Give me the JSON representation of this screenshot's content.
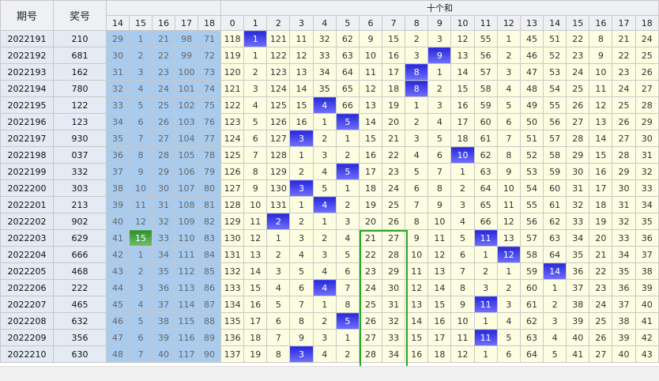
{
  "header": {
    "issue": "期号",
    "number": "奖号",
    "group": "十个和",
    "left_cols": [
      14,
      15,
      16,
      17,
      18
    ],
    "right_cols": [
      0,
      1,
      2,
      3,
      4,
      5,
      6,
      7,
      8,
      9,
      10,
      11,
      12,
      13,
      14,
      15,
      16,
      17,
      18
    ]
  },
  "rows": [
    {
      "issue": "2022191",
      "number": "210",
      "left": [
        29,
        1,
        21,
        98,
        71
      ],
      "right": [
        118,
        1,
        121,
        11,
        32,
        62,
        9,
        15,
        2,
        3,
        12,
        55,
        1,
        45,
        51,
        22,
        8,
        21,
        24
      ],
      "hit": 1
    },
    {
      "issue": "2022192",
      "number": "681",
      "left": [
        30,
        2,
        22,
        99,
        72
      ],
      "right": [
        119,
        1,
        122,
        12,
        33,
        63,
        10,
        16,
        3,
        9,
        13,
        56,
        2,
        46,
        52,
        23,
        9,
        22,
        25
      ],
      "hit": 9
    },
    {
      "issue": "2022193",
      "number": "162",
      "left": [
        31,
        3,
        23,
        100,
        73
      ],
      "right": [
        120,
        2,
        123,
        13,
        34,
        64,
        11,
        17,
        8,
        1,
        14,
        57,
        3,
        47,
        53,
        24,
        10,
        23,
        26
      ],
      "hit": 8
    },
    {
      "issue": "2022194",
      "number": "780",
      "left": [
        32,
        4,
        24,
        101,
        74
      ],
      "right": [
        121,
        3,
        124,
        14,
        35,
        65,
        12,
        18,
        8,
        2,
        15,
        58,
        4,
        48,
        54,
        25,
        11,
        24,
        27
      ],
      "hit": 8
    },
    {
      "issue": "2022195",
      "number": "122",
      "left": [
        33,
        5,
        25,
        102,
        75
      ],
      "right": [
        122,
        4,
        125,
        15,
        4,
        66,
        13,
        19,
        1,
        3,
        16,
        59,
        5,
        49,
        55,
        26,
        12,
        25,
        28
      ],
      "hit": 4
    },
    {
      "issue": "2022196",
      "number": "123",
      "left": [
        34,
        6,
        26,
        103,
        76
      ],
      "right": [
        123,
        5,
        126,
        16,
        1,
        5,
        14,
        20,
        2,
        4,
        17,
        60,
        6,
        50,
        56,
        27,
        13,
        26,
        29
      ],
      "hit": 5
    },
    {
      "issue": "2022197",
      "number": "930",
      "left": [
        35,
        7,
        27,
        104,
        77
      ],
      "right": [
        124,
        6,
        127,
        3,
        2,
        1,
        15,
        21,
        3,
        5,
        18,
        61,
        7,
        51,
        57,
        28,
        14,
        27,
        30
      ],
      "hit": 3
    },
    {
      "issue": "2022198",
      "number": "037",
      "left": [
        36,
        8,
        28,
        105,
        78
      ],
      "right": [
        125,
        7,
        128,
        1,
        3,
        2,
        16,
        22,
        4,
        6,
        10,
        62,
        8,
        52,
        58,
        29,
        15,
        28,
        31
      ],
      "hit": 10
    },
    {
      "issue": "2022199",
      "number": "332",
      "left": [
        37,
        9,
        29,
        106,
        79
      ],
      "right": [
        126,
        8,
        129,
        2,
        4,
        5,
        17,
        23,
        5,
        7,
        1,
        63,
        9,
        53,
        59,
        30,
        16,
        29,
        32
      ],
      "hit": 5
    },
    {
      "issue": "2022200",
      "number": "303",
      "left": [
        38,
        10,
        30,
        107,
        80
      ],
      "right": [
        127,
        9,
        130,
        3,
        5,
        1,
        18,
        24,
        6,
        8,
        2,
        64,
        10,
        54,
        60,
        31,
        17,
        30,
        33
      ],
      "hit": 3
    },
    {
      "issue": "2022201",
      "number": "213",
      "left": [
        39,
        11,
        31,
        108,
        81
      ],
      "right": [
        128,
        10,
        131,
        1,
        4,
        2,
        19,
        25,
        7,
        9,
        3,
        65,
        11,
        55,
        61,
        32,
        18,
        31,
        34
      ],
      "hit": 4
    },
    {
      "issue": "2022202",
      "number": "902",
      "left": [
        40,
        12,
        32,
        109,
        82
      ],
      "right": [
        129,
        11,
        2,
        2,
        1,
        3,
        20,
        26,
        8,
        10,
        4,
        66,
        12,
        56,
        62,
        33,
        19,
        32,
        35
      ],
      "hit": 2
    },
    {
      "issue": "2022203",
      "number": "629",
      "left": [
        41,
        15,
        33,
        110,
        83
      ],
      "right": [
        130,
        12,
        1,
        3,
        2,
        4,
        21,
        27,
        9,
        11,
        5,
        11,
        13,
        57,
        63,
        34,
        20,
        33,
        36
      ],
      "hit": 11,
      "left_hit": 1
    },
    {
      "issue": "2022204",
      "number": "666",
      "left": [
        42,
        1,
        34,
        111,
        84
      ],
      "right": [
        131,
        13,
        2,
        4,
        3,
        5,
        22,
        28,
        10,
        12,
        6,
        1,
        12,
        58,
        64,
        35,
        21,
        34,
        37
      ],
      "hit": 12
    },
    {
      "issue": "2022205",
      "number": "468",
      "left": [
        43,
        2,
        35,
        112,
        85
      ],
      "right": [
        132,
        14,
        3,
        5,
        4,
        6,
        23,
        29,
        11,
        13,
        7,
        2,
        1,
        59,
        14,
        36,
        22,
        35,
        38
      ],
      "hit": 14
    },
    {
      "issue": "2022206",
      "number": "222",
      "left": [
        44,
        3,
        36,
        113,
        86
      ],
      "right": [
        133,
        15,
        4,
        6,
        4,
        7,
        24,
        30,
        12,
        14,
        8,
        3,
        2,
        60,
        1,
        37,
        23,
        36,
        39
      ],
      "hit": 4
    },
    {
      "issue": "2022207",
      "number": "465",
      "left": [
        45,
        4,
        37,
        114,
        87
      ],
      "right": [
        134,
        16,
        5,
        7,
        1,
        8,
        25,
        31,
        13,
        15,
        9,
        11,
        3,
        61,
        2,
        38,
        24,
        37,
        40
      ],
      "hit": 11
    },
    {
      "issue": "2022208",
      "number": "632",
      "left": [
        46,
        5,
        38,
        115,
        88
      ],
      "right": [
        135,
        17,
        6,
        8,
        2,
        5,
        26,
        32,
        14,
        16,
        10,
        1,
        4,
        62,
        3,
        39,
        25,
        38,
        41
      ],
      "hit": 5
    },
    {
      "issue": "2022209",
      "number": "356",
      "left": [
        47,
        6,
        39,
        116,
        89
      ],
      "right": [
        136,
        18,
        7,
        9,
        3,
        1,
        27,
        33,
        15,
        17,
        11,
        11,
        5,
        63,
        4,
        40,
        26,
        39,
        42
      ],
      "hit": 11
    },
    {
      "issue": "2022210",
      "number": "630",
      "left": [
        48,
        7,
        40,
        117,
        90
      ],
      "right": [
        137,
        19,
        8,
        3,
        4,
        2,
        28,
        34,
        16,
        18,
        12,
        1,
        6,
        64,
        5,
        41,
        27,
        40,
        43
      ],
      "hit": 3
    }
  ]
}
